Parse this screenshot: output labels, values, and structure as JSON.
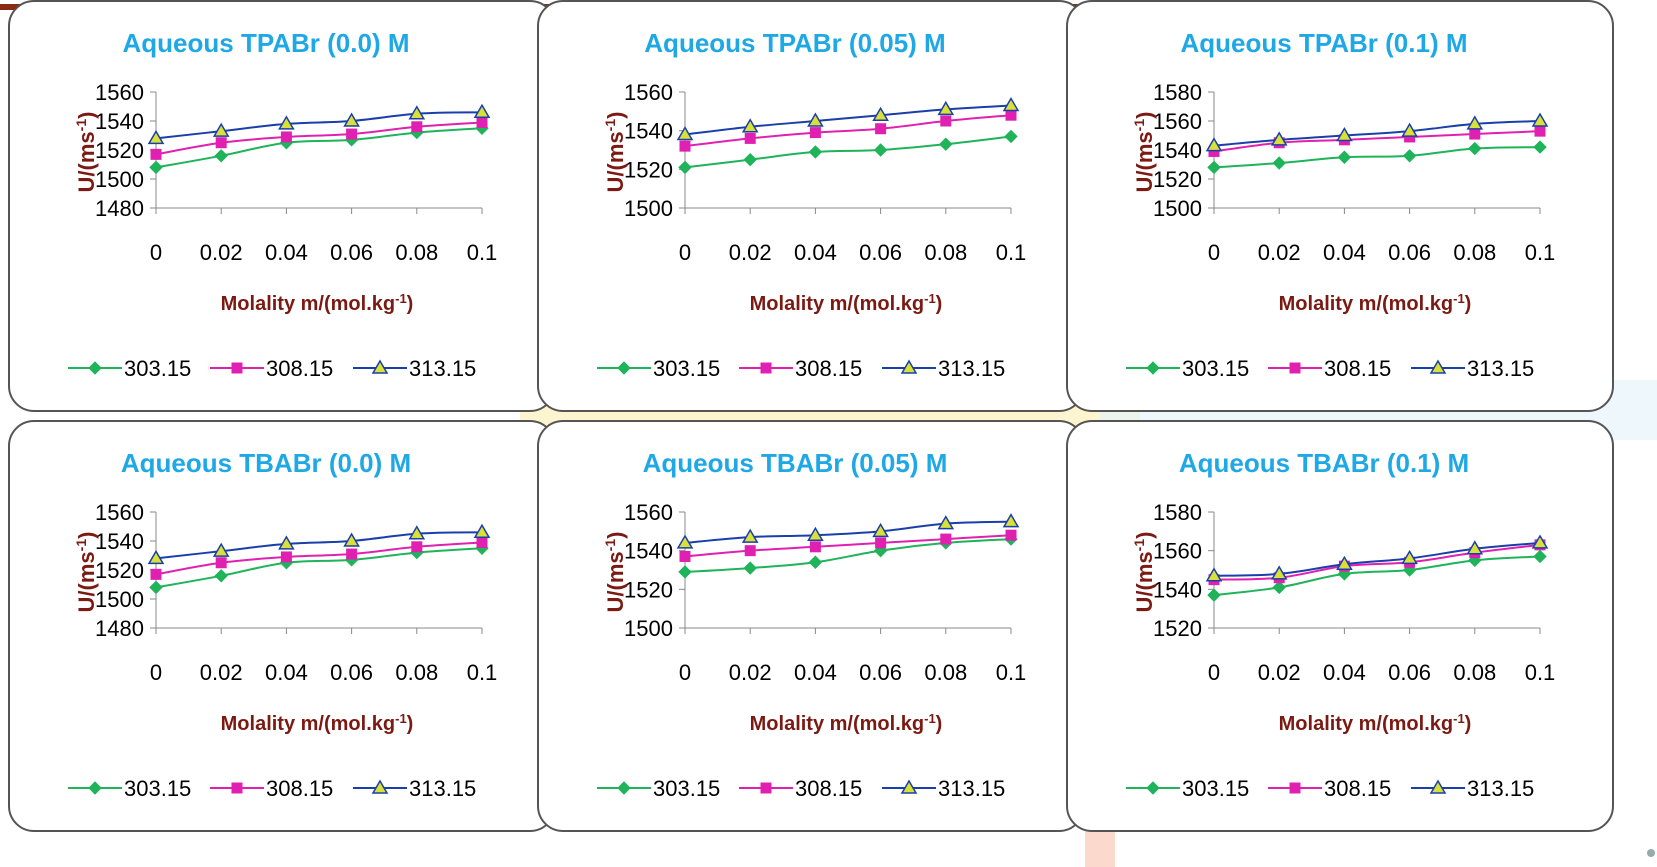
{
  "colors": {
    "title": "#1fa8e6",
    "axis_label": "#7a1a12",
    "series": [
      "#1fb35a",
      "#e020b0",
      "#1a3faa"
    ],
    "marker_fill": [
      "#1fb35a",
      "#e020b0",
      "#d9e03a"
    ]
  },
  "chart_data": [
    {
      "type": "line",
      "title": "Aqueous TPABr (0.0) M",
      "xlabel": "Molality m/(mol.kg",
      "xlabel_sup": "-1",
      "ylabel": "U/(ms",
      "ylabel_sup": "-1",
      "x": [
        0,
        0.02,
        0.04,
        0.06,
        0.08,
        0.1
      ],
      "x_ticks": [
        "0",
        "0.02",
        "0.04",
        "0.06",
        "0.08",
        "0.1"
      ],
      "y_ticks": [
        "1480",
        "1500",
        "1520",
        "1540",
        "1560"
      ],
      "ylim": [
        1480,
        1560
      ],
      "legend": "bottom",
      "grid": false,
      "series": [
        {
          "name": "303.15",
          "marker": "diamond",
          "values": [
            1508,
            1516,
            1525,
            1527,
            1532,
            1535
          ]
        },
        {
          "name": "308.15",
          "marker": "square",
          "values": [
            1517,
            1525,
            1529,
            1531,
            1536,
            1539
          ]
        },
        {
          "name": "313.15",
          "marker": "triangle",
          "values": [
            1528,
            1533,
            1538,
            1540,
            1545,
            1546
          ]
        }
      ]
    },
    {
      "type": "line",
      "title": "Aqueous TPABr (0.05) M",
      "xlabel": "Molality m/(mol.kg",
      "xlabel_sup": "-1",
      "ylabel": "U/(ms",
      "ylabel_sup": "-1",
      "x": [
        0,
        0.02,
        0.04,
        0.06,
        0.08,
        0.1
      ],
      "x_ticks": [
        "0",
        "0.02",
        "0.04",
        "0.06",
        "0.08",
        "0.1"
      ],
      "y_ticks": [
        "1500",
        "1520",
        "1540",
        "1560"
      ],
      "ylim": [
        1500,
        1560
      ],
      "legend": "bottom",
      "grid": false,
      "series": [
        {
          "name": "303.15",
          "marker": "diamond",
          "values": [
            1521,
            1525,
            1529,
            1530,
            1533,
            1537
          ]
        },
        {
          "name": "308.15",
          "marker": "square",
          "values": [
            1532,
            1536,
            1539,
            1541,
            1545,
            1548
          ]
        },
        {
          "name": "313.15",
          "marker": "triangle",
          "values": [
            1538,
            1542,
            1545,
            1548,
            1551,
            1553
          ]
        }
      ]
    },
    {
      "type": "line",
      "title": "Aqueous TPABr (0.1) M",
      "xlabel": "Molality m/(mol.kg",
      "xlabel_sup": "-1",
      "ylabel": "U/(ms",
      "ylabel_sup": "-1",
      "x": [
        0,
        0.02,
        0.04,
        0.06,
        0.08,
        0.1
      ],
      "x_ticks": [
        "0",
        "0.02",
        "0.04",
        "0.06",
        "0.08",
        "0.1"
      ],
      "y_ticks": [
        "1500",
        "1520",
        "1540",
        "1560",
        "1580"
      ],
      "ylim": [
        1500,
        1580
      ],
      "legend": "bottom",
      "grid": false,
      "series": [
        {
          "name": "303.15",
          "marker": "diamond",
          "values": [
            1528,
            1531,
            1535,
            1536,
            1541,
            1542
          ]
        },
        {
          "name": "308.15",
          "marker": "square",
          "values": [
            1539,
            1545,
            1547,
            1549,
            1551,
            1553
          ]
        },
        {
          "name": "313.15",
          "marker": "triangle",
          "values": [
            1543,
            1547,
            1550,
            1553,
            1558,
            1560
          ]
        }
      ]
    },
    {
      "type": "line",
      "title": "Aqueous TBABr (0.0) M",
      "xlabel": "Molality m/(mol.kg",
      "xlabel_sup": "-1",
      "ylabel": "U/(ms",
      "ylabel_sup": "-1",
      "x": [
        0,
        0.02,
        0.04,
        0.06,
        0.08,
        0.1
      ],
      "x_ticks": [
        "0",
        "0.02",
        "0.04",
        "0.06",
        "0.08",
        "0.1"
      ],
      "y_ticks": [
        "1480",
        "1500",
        "1520",
        "1540",
        "1560"
      ],
      "ylim": [
        1480,
        1560
      ],
      "legend": "bottom",
      "grid": false,
      "series": [
        {
          "name": "303.15",
          "marker": "diamond",
          "values": [
            1508,
            1516,
            1525,
            1527,
            1532,
            1535
          ]
        },
        {
          "name": "308.15",
          "marker": "square",
          "values": [
            1517,
            1525,
            1529,
            1531,
            1536,
            1539
          ]
        },
        {
          "name": "313.15",
          "marker": "triangle",
          "values": [
            1528,
            1533,
            1538,
            1540,
            1545,
            1546
          ]
        }
      ]
    },
    {
      "type": "line",
      "title": "Aqueous TBABr (0.05) M",
      "xlabel": "Molality m/(mol.kg",
      "xlabel_sup": "-1",
      "ylabel": "U/(ms",
      "ylabel_sup": "-1",
      "x": [
        0,
        0.02,
        0.04,
        0.06,
        0.08,
        0.1
      ],
      "x_ticks": [
        "0",
        "0.02",
        "0.04",
        "0.06",
        "0.08",
        "0.1"
      ],
      "y_ticks": [
        "1500",
        "1520",
        "1540",
        "1560"
      ],
      "ylim": [
        1500,
        1560
      ],
      "legend": "bottom",
      "grid": false,
      "series": [
        {
          "name": "303.15",
          "marker": "diamond",
          "values": [
            1529,
            1531,
            1534,
            1540,
            1544,
            1546
          ]
        },
        {
          "name": "308.15",
          "marker": "square",
          "values": [
            1537,
            1540,
            1542,
            1544,
            1546,
            1548
          ]
        },
        {
          "name": "313.15",
          "marker": "triangle",
          "values": [
            1544,
            1547,
            1548,
            1550,
            1554,
            1555
          ]
        }
      ]
    },
    {
      "type": "line",
      "title": "Aqueous TBABr (0.1) M",
      "xlabel": "Molality m/(mol.kg",
      "xlabel_sup": "-1",
      "ylabel": "U/(ms",
      "ylabel_sup": "-1",
      "x": [
        0,
        0.02,
        0.04,
        0.06,
        0.08,
        0.1
      ],
      "x_ticks": [
        "0",
        "0.02",
        "0.04",
        "0.06",
        "0.08",
        "0.1"
      ],
      "y_ticks": [
        "1520",
        "1540",
        "1560",
        "1580"
      ],
      "ylim": [
        1520,
        1580
      ],
      "legend": "bottom",
      "grid": false,
      "series": [
        {
          "name": "303.15",
          "marker": "diamond",
          "values": [
            1537,
            1541,
            1548,
            1550,
            1555,
            1557
          ]
        },
        {
          "name": "308.15",
          "marker": "square",
          "values": [
            1545,
            1546,
            1552,
            1554,
            1559,
            1563
          ]
        },
        {
          "name": "313.15",
          "marker": "triangle",
          "values": [
            1547,
            1548,
            1553,
            1556,
            1561,
            1564
          ]
        }
      ]
    }
  ]
}
